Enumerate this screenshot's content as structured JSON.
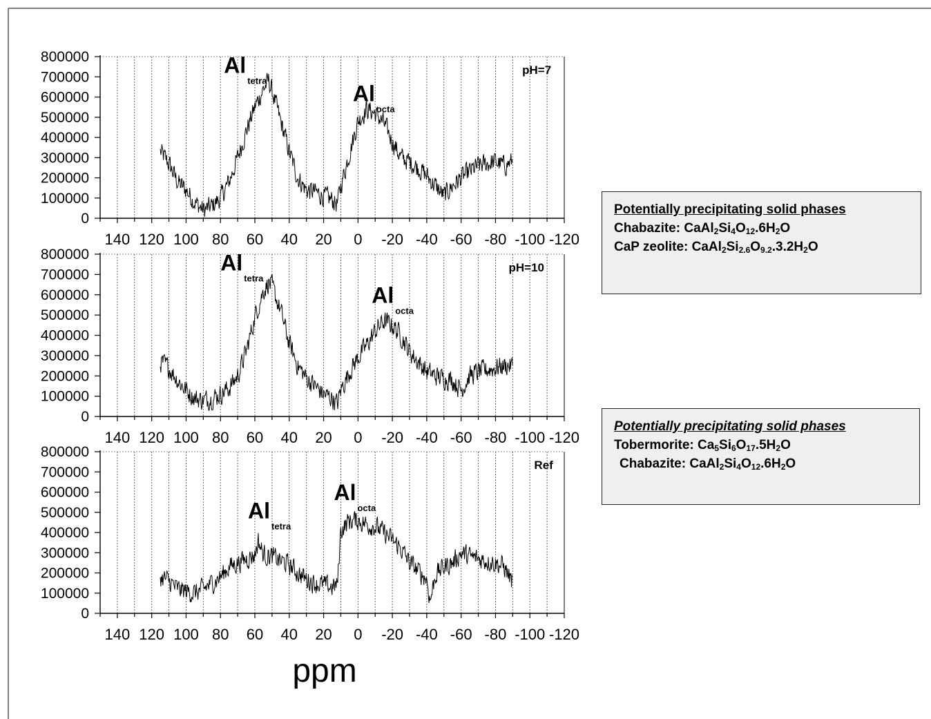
{
  "chart_data": [
    {
      "type": "line",
      "title": "",
      "xlabel": "ppm",
      "ylabel": "",
      "x_reversed": true,
      "xlim": [
        150,
        -120
      ],
      "ylim": [
        0,
        800000
      ],
      "x_ticks": [
        "140",
        "120",
        "100",
        "80",
        "60",
        "40",
        "20",
        "0",
        "-20",
        "-40",
        "-60",
        "-80",
        "-100",
        "-120"
      ],
      "y_ticks": [
        "800000",
        "700000",
        "600000",
        "500000",
        "400000",
        "300000",
        "200000",
        "100000",
        "0"
      ],
      "grid": "vertical dotted every 10 ppm",
      "annotations": [
        {
          "label": "Al",
          "sub": "tetra",
          "x": 78,
          "y": 720000
        },
        {
          "label": "Al",
          "sub": "octa",
          "x": 3,
          "y": 580000
        },
        {
          "label": "pH=7",
          "x": -104,
          "y": 715000
        }
      ],
      "series": [
        {
          "x": [
            115,
            110,
            105,
            100,
            95,
            90,
            85,
            80,
            75,
            70,
            65,
            60,
            55,
            52,
            50,
            45,
            40,
            35,
            30,
            25,
            20,
            15,
            12,
            10,
            5,
            0,
            -5,
            -10,
            -15,
            -20,
            -25,
            -30,
            -35,
            -40,
            -45,
            -50,
            -55,
            -60,
            -65,
            -70,
            -75,
            -80,
            -85,
            -90
          ],
          "y": [
            330000,
            270000,
            180000,
            140000,
            80000,
            40000,
            60000,
            100000,
            180000,
            300000,
            430000,
            550000,
            640000,
            680000,
            630000,
            480000,
            330000,
            200000,
            140000,
            130000,
            110000,
            90000,
            70000,
            160000,
            320000,
            480000,
            540000,
            520000,
            470000,
            380000,
            300000,
            280000,
            250000,
            210000,
            160000,
            110000,
            160000,
            200000,
            230000,
            260000,
            270000,
            280000,
            260000,
            280000
          ],
          "noise": 45000
        }
      ]
    },
    {
      "type": "line",
      "title": "",
      "xlabel": "ppm",
      "ylabel": "",
      "x_reversed": true,
      "xlim": [
        150,
        -120
      ],
      "ylim": [
        0,
        800000
      ],
      "x_ticks": [
        "140",
        "120",
        "100",
        "80",
        "60",
        "40",
        "20",
        "0",
        "-20",
        "-40",
        "-60",
        "-80",
        "-100",
        "-120"
      ],
      "y_ticks": [
        "800000",
        "700000",
        "600000",
        "500000",
        "400000",
        "300000",
        "200000",
        "100000",
        "0"
      ],
      "grid": "vertical dotted every 10 ppm",
      "annotations": [
        {
          "label": "Al",
          "sub": "tetra",
          "x": 80,
          "y": 720000
        },
        {
          "label": "Al",
          "sub": "octa",
          "x": -8,
          "y": 560000
        },
        {
          "label": "pH=10",
          "x": -98,
          "y": 715000
        }
      ],
      "series": [
        {
          "x": [
            115,
            110,
            105,
            100,
            95,
            90,
            85,
            80,
            75,
            70,
            65,
            60,
            55,
            52,
            50,
            45,
            40,
            35,
            30,
            25,
            20,
            15,
            12,
            10,
            5,
            0,
            -5,
            -10,
            -15,
            -20,
            -25,
            -30,
            -35,
            -40,
            -45,
            -50,
            -55,
            -60,
            -65,
            -70,
            -75,
            -80,
            -85,
            -90
          ],
          "y": [
            270000,
            240000,
            180000,
            130000,
            90000,
            80000,
            90000,
            110000,
            140000,
            200000,
            320000,
            490000,
            620000,
            660000,
            640000,
            520000,
            360000,
            250000,
            190000,
            150000,
            110000,
            90000,
            60000,
            130000,
            220000,
            290000,
            350000,
            420000,
            470000,
            450000,
            400000,
            320000,
            270000,
            220000,
            200000,
            190000,
            180000,
            130000,
            200000,
            220000,
            230000,
            240000,
            250000,
            250000
          ],
          "noise": 45000
        }
      ]
    },
    {
      "type": "line",
      "title": "",
      "xlabel": "ppm",
      "ylabel": "",
      "x_reversed": true,
      "xlim": [
        150,
        -120
      ],
      "ylim": [
        0,
        800000
      ],
      "x_ticks": [
        "140",
        "120",
        "100",
        "80",
        "60",
        "40",
        "20",
        "0",
        "-20",
        "-40",
        "-60",
        "-80",
        "-100",
        "-120"
      ],
      "y_ticks": [
        "800000",
        "700000",
        "600000",
        "500000",
        "400000",
        "300000",
        "200000",
        "100000",
        "0"
      ],
      "grid": "vertical dotted every 10 ppm",
      "annotations": [
        {
          "label": "Al",
          "sub": "tetra",
          "x": 64,
          "y": 470000
        },
        {
          "label": "Al",
          "sub": "octa",
          "x": 14,
          "y": 560000
        },
        {
          "label": "Ref",
          "x": -108,
          "y": 715000
        }
      ],
      "series": [
        {
          "x": [
            115,
            110,
            105,
            100,
            95,
            90,
            85,
            80,
            75,
            70,
            65,
            60,
            58,
            55,
            50,
            45,
            40,
            35,
            30,
            25,
            20,
            15,
            12,
            10,
            5,
            0,
            -5,
            -10,
            -15,
            -20,
            -25,
            -30,
            -35,
            -40,
            -42,
            -45,
            -50,
            -55,
            -60,
            -65,
            -70,
            -75,
            -80,
            -85,
            -90
          ],
          "y": [
            180000,
            160000,
            120000,
            110000,
            100000,
            120000,
            150000,
            180000,
            230000,
            250000,
            270000,
            290000,
            360000,
            290000,
            280000,
            260000,
            240000,
            200000,
            170000,
            150000,
            140000,
            130000,
            140000,
            410000,
            460000,
            460000,
            440000,
            430000,
            400000,
            360000,
            320000,
            250000,
            210000,
            170000,
            60000,
            190000,
            230000,
            250000,
            300000,
            280000,
            270000,
            260000,
            250000,
            230000,
            150000
          ],
          "noise": 45000
        }
      ]
    }
  ],
  "info_boxes": [
    {
      "header": "Potentially precipitating solid phases",
      "lines": [
        {
          "label": "Chabazite:",
          "formula": [
            [
              "CaAl",
              ""
            ],
            [
              "2",
              "sub"
            ],
            [
              "Si",
              ""
            ],
            [
              "4",
              "sub"
            ],
            [
              "O",
              ""
            ],
            [
              "12",
              "sub"
            ],
            [
              ".6H",
              ""
            ],
            [
              "2",
              "sub"
            ],
            [
              "O",
              ""
            ]
          ]
        },
        {
          "label": "CaP zeolite:",
          "formula": [
            [
              "CaAl",
              ""
            ],
            [
              "2",
              "sub"
            ],
            [
              "Si",
              ""
            ],
            [
              "2.6",
              "sub"
            ],
            [
              "O",
              ""
            ],
            [
              "9.2",
              "sub"
            ],
            [
              ".3.2H",
              ""
            ],
            [
              "2",
              "sub"
            ],
            [
              "O",
              ""
            ]
          ]
        }
      ]
    },
    {
      "header": "Potentially precipitating solid phases",
      "lines": [
        {
          "label": "Tobermorite:",
          "formula": [
            [
              "Ca",
              ""
            ],
            [
              "5",
              "sub"
            ],
            [
              "Si",
              ""
            ],
            [
              "6",
              "sub"
            ],
            [
              "O",
              ""
            ],
            [
              "17",
              "sub"
            ],
            [
              ".5H",
              ""
            ],
            [
              "2",
              "sub"
            ],
            [
              "O",
              ""
            ]
          ]
        },
        {
          "label": "Chabazite:",
          "formula": [
            [
              "CaAl",
              ""
            ],
            [
              "2",
              "sub"
            ],
            [
              "Si",
              ""
            ],
            [
              "4",
              "sub"
            ],
            [
              "O",
              ""
            ],
            [
              "12",
              "sub"
            ],
            [
              ".6H",
              ""
            ],
            [
              "2",
              "sub"
            ],
            [
              "O",
              ""
            ]
          ]
        }
      ]
    }
  ]
}
